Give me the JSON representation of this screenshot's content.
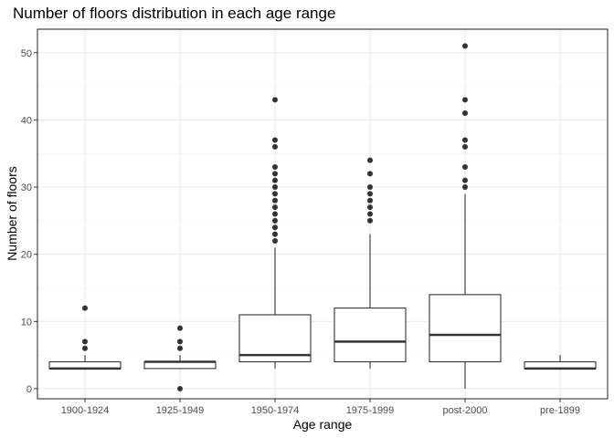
{
  "chart_data": {
    "type": "boxplot",
    "title": "Number of floors distribution in each age range",
    "xlabel": "Age range",
    "ylabel": "Number of floors",
    "ylim": [
      -1.5,
      53.5
    ],
    "yticks": [
      0,
      10,
      20,
      30,
      40,
      50
    ],
    "grid": true,
    "theme": "bw",
    "categories": [
      "1900-1924",
      "1925-1949",
      "1950-1974",
      "1975-1999",
      "post-2000",
      "pre-1899"
    ],
    "boxes": [
      {
        "category": "1900-1924",
        "min": 3,
        "q1": 3,
        "median": 3,
        "q3": 4,
        "max": 5,
        "outliers": [
          6,
          7,
          12
        ]
      },
      {
        "category": "1925-1949",
        "min": 3,
        "q1": 3,
        "median": 4,
        "q3": 4,
        "max": 5,
        "outliers": [
          0,
          6,
          7,
          9
        ]
      },
      {
        "category": "1950-1974",
        "min": 3,
        "q1": 4,
        "median": 5,
        "q3": 11,
        "max": 21,
        "outliers": [
          22,
          23,
          24,
          25,
          26,
          27,
          28,
          29,
          30,
          31,
          32,
          33,
          36,
          37,
          43
        ]
      },
      {
        "category": "1975-1999",
        "min": 3,
        "q1": 4,
        "median": 7,
        "q3": 12,
        "max": 23,
        "outliers": [
          25,
          26,
          27,
          28,
          29,
          30,
          32,
          34
        ]
      },
      {
        "category": "post-2000",
        "min": 0,
        "q1": 4,
        "median": 8,
        "q3": 14,
        "max": 29,
        "outliers": [
          30,
          31,
          33,
          36,
          37,
          41,
          43,
          51
        ]
      },
      {
        "category": "pre-1899",
        "min": 3,
        "q1": 3,
        "median": 3,
        "q3": 4,
        "max": 5,
        "outliers": []
      }
    ]
  }
}
